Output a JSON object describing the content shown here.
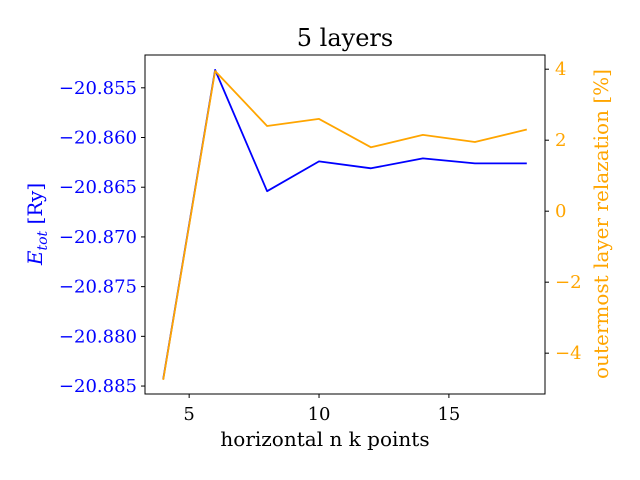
{
  "chart_data": {
    "type": "line",
    "title": "5 layers",
    "xlabel": "horizontal n k points",
    "ylabel_left": {
      "main": "E",
      "sub": "tot",
      "unit": " [Ry]"
    },
    "ylabel_right": "outermost layer relazation [%]",
    "x": [
      4,
      6,
      8,
      10,
      12,
      14,
      16,
      18
    ],
    "xlim": [
      3.3,
      18.7
    ],
    "x_ticks": [
      5,
      10,
      15
    ],
    "left_axis": {
      "ylim": [
        -20.8858,
        -20.8517
      ],
      "ticks": [
        -20.855,
        -20.86,
        -20.865,
        -20.87,
        -20.875,
        -20.88,
        -20.885
      ],
      "tick_labels": [
        "−20.855",
        "−20.860",
        "−20.865",
        "−20.870",
        "−20.875",
        "−20.880",
        "−20.885"
      ],
      "color": "#0000ff"
    },
    "right_axis": {
      "ylim": [
        -5.15,
        4.4
      ],
      "ticks": [
        4,
        2,
        0,
        -2,
        -4
      ],
      "tick_labels": [
        "4",
        "2",
        "0",
        "−2",
        "−4"
      ],
      "color": "#ffa500"
    },
    "series": [
      {
        "axis": "left",
        "color": "#0000ff",
        "values": [
          -20.8843,
          -20.8532,
          -20.8654,
          -20.8624,
          -20.8631,
          -20.8621,
          -20.8626,
          -20.8626
        ]
      },
      {
        "axis": "right",
        "color": "#ffa500",
        "values": [
          -4.75,
          3.95,
          2.4,
          2.6,
          1.8,
          2.15,
          1.95,
          2.3
        ]
      }
    ],
    "grid": false,
    "legend": "none"
  }
}
